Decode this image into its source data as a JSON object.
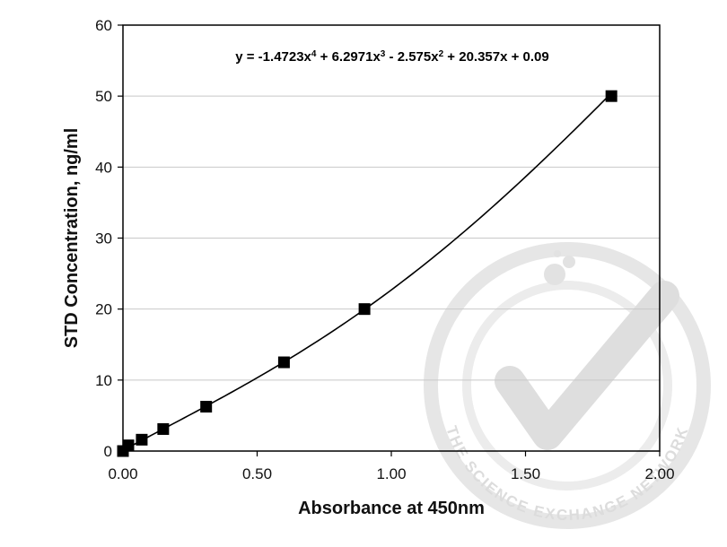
{
  "chart_data": {
    "type": "scatter",
    "xlabel": "Absorbance at 450nm",
    "ylabel": "STD Concentration, ng/ml",
    "xlim": [
      0,
      2
    ],
    "ylim": [
      0,
      60
    ],
    "x_ticks": [
      "0.00",
      "0.50",
      "1.00",
      "1.50",
      "2.00"
    ],
    "y_ticks": [
      "0",
      "10",
      "20",
      "30",
      "40",
      "50",
      "60"
    ],
    "grid": "horizontal",
    "legend": "none",
    "annotation": {
      "parts": [
        {
          "t": "y = -1.4723x",
          "sup": false
        },
        {
          "t": "4",
          "sup": true
        },
        {
          "t": " + 6.2971x",
          "sup": false
        },
        {
          "t": "3",
          "sup": true
        },
        {
          "t": " - 2.575x",
          "sup": false
        },
        {
          "t": "2",
          "sup": true
        },
        {
          "t": " + 20.357x + 0.09",
          "sup": false
        }
      ]
    },
    "fit": {
      "type": "polynomial",
      "coefficients": [
        -1.4723,
        6.2971,
        -2.575,
        20.357,
        0.09
      ]
    },
    "series": [
      {
        "x": [
          0.0,
          0.02,
          0.07,
          0.15,
          0.31,
          0.6,
          0.9,
          1.82
        ],
        "y": [
          0,
          0.8,
          1.6,
          3.1,
          6.25,
          12.5,
          20,
          50
        ]
      }
    ],
    "colors": {
      "marker": "#000000",
      "line": "#000000",
      "grid": "#c8c8c8",
      "watermark": "#dcdcdc"
    }
  },
  "watermark": {
    "text": "THE SCIENCE EXCHANGE NETWORK",
    "icon": "check-icon"
  }
}
